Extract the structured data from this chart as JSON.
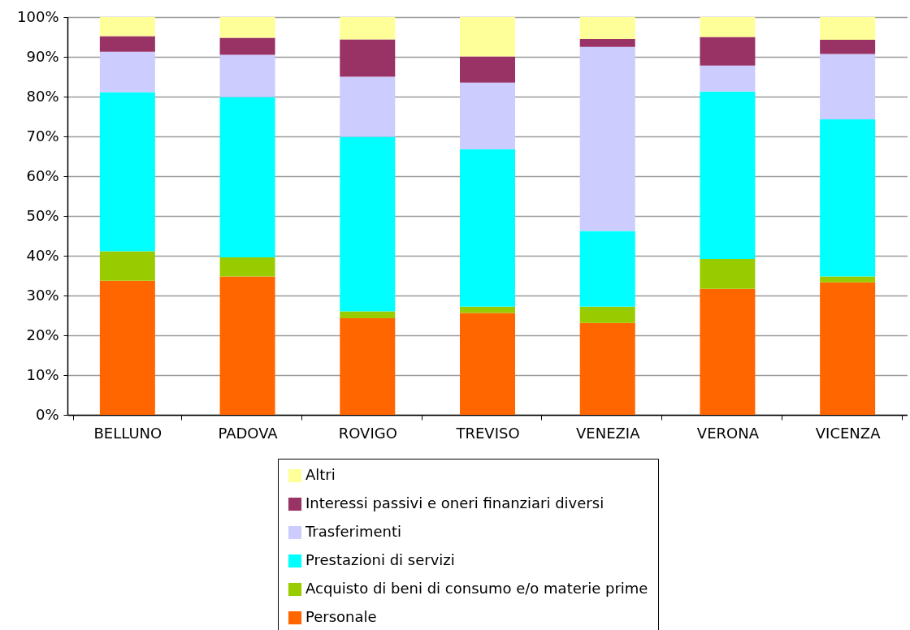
{
  "chart_data": {
    "type": "bar",
    "stacked": true,
    "categories": [
      "BELLUNO",
      "PADOVA",
      "ROVIGO",
      "TREVISO",
      "VENEZIA",
      "VERONA",
      "VICENZA"
    ],
    "series": [
      {
        "name": "Personale",
        "color": "#ff6600",
        "values": [
          33.7,
          34.8,
          24.3,
          25.6,
          23.1,
          31.7,
          33.3
        ]
      },
      {
        "name": "Acquisto di beni di consumo e/o materie prime",
        "color": "#99cc00",
        "values": [
          7.4,
          4.8,
          1.7,
          1.6,
          4.1,
          7.5,
          1.5
        ]
      },
      {
        "name": "Prestazioni di servizi",
        "color": "#00ffff",
        "values": [
          40.0,
          40.3,
          43.9,
          39.6,
          19.0,
          42.1,
          39.5
        ]
      },
      {
        "name": "Trasferimenti",
        "color": "#ccccff",
        "values": [
          10.2,
          10.6,
          15.1,
          16.7,
          46.3,
          6.5,
          16.4
        ]
      },
      {
        "name": "Interessi passivi e oneri finanziari diversi",
        "color": "#993366",
        "values": [
          3.9,
          4.3,
          9.4,
          6.6,
          2.0,
          7.2,
          3.6
        ]
      },
      {
        "name": "Altri",
        "color": "#ffff99",
        "values": [
          4.8,
          5.2,
          5.6,
          9.9,
          5.5,
          5.0,
          5.7
        ]
      }
    ],
    "ylim": [
      0,
      100
    ],
    "yticks": [
      {
        "value": 0,
        "label": "0%"
      },
      {
        "value": 10,
        "label": "10%"
      },
      {
        "value": 20,
        "label": "20%"
      },
      {
        "value": 30,
        "label": "30%"
      },
      {
        "value": 40,
        "label": "40%"
      },
      {
        "value": 50,
        "label": "50%"
      },
      {
        "value": 60,
        "label": "60%"
      },
      {
        "value": 70,
        "label": "70%"
      },
      {
        "value": 80,
        "label": "80%"
      },
      {
        "value": 90,
        "label": "90%"
      },
      {
        "value": 100,
        "label": "100%"
      }
    ],
    "grid": "y",
    "legend": "bottom"
  }
}
